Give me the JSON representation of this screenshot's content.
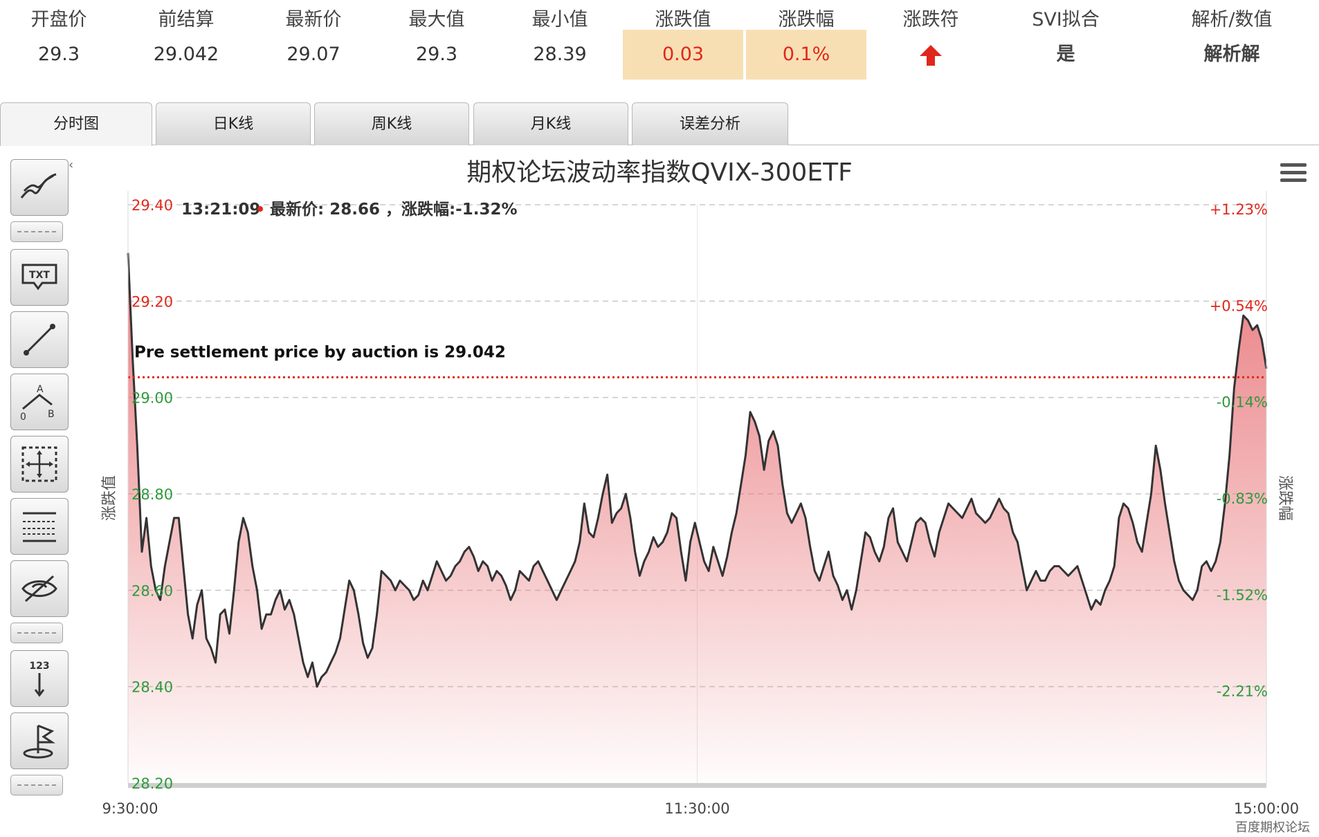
{
  "stats": [
    {
      "label": "开盘价",
      "value": "29.3"
    },
    {
      "label": "前结算",
      "value": "29.042"
    },
    {
      "label": "最新价",
      "value": "29.07"
    },
    {
      "label": "最大值",
      "value": "29.3"
    },
    {
      "label": "最小值",
      "value": "28.39"
    },
    {
      "label": "涨跌值",
      "value": "0.03"
    },
    {
      "label": "涨跌幅",
      "value": "0.1%"
    },
    {
      "label": "涨跌符",
      "value": ""
    },
    {
      "label": "SVI拟合",
      "value": "是"
    },
    {
      "label": "解析/数值",
      "value": "解析解"
    }
  ],
  "colors": {
    "up": "#e0271c",
    "down": "#2e9a3a",
    "highlight": "#f8dfb3",
    "line": "#333333",
    "fill": "#e8767a"
  },
  "tabs": [
    "分时图",
    "日K线",
    "周K线",
    "月K线",
    "误差分析"
  ],
  "toolbar_icons": [
    "trend-lines-icon",
    "text-annotation-icon",
    "line-segment-icon",
    "abc-pattern-icon",
    "crosshair-measure-icon",
    "horizontal-lines-icon",
    "hide-eye-icon",
    "number-label-icon",
    "flag-icon"
  ],
  "collapse_glyph": "‹",
  "chart_data": {
    "type": "area",
    "title": "期权论坛波动率指数QVIX-300ETF",
    "ylabel_left": "涨跌值",
    "ylabel_right": "涨跌幅",
    "ylim": [
      28.2,
      29.4
    ],
    "y_ticks": [
      "29.40",
      "29.20",
      "29.00",
      "28.80",
      "28.60",
      "28.40",
      "28.20"
    ],
    "y_tick_values": [
      29.4,
      29.2,
      29.0,
      28.8,
      28.6,
      28.4,
      28.2
    ],
    "pct_ticks": [
      "+1.23%",
      "+0.54%",
      "-0.14%",
      "-0.83%",
      "-1.52%",
      "-2.21%"
    ],
    "x_ticks": [
      "9:30:00",
      "11:30:00",
      "15:00:00"
    ],
    "reference_value": 29.042,
    "reference_label": "Pre settlement price by auction is 29.042",
    "tooltip": {
      "time": "13:21:09",
      "text": "最新价: 28.66 ，涨跌幅:-1.32%"
    },
    "values": [
      29.3,
      29.08,
      28.9,
      28.68,
      28.75,
      28.65,
      28.6,
      28.58,
      28.65,
      28.7,
      28.75,
      28.75,
      28.65,
      28.55,
      28.5,
      28.57,
      28.6,
      28.5,
      28.48,
      28.45,
      28.55,
      28.56,
      28.51,
      28.6,
      28.7,
      28.75,
      28.72,
      28.65,
      28.6,
      28.52,
      28.55,
      28.55,
      28.58,
      28.6,
      28.56,
      28.58,
      28.55,
      28.5,
      28.45,
      28.42,
      28.45,
      28.4,
      28.42,
      28.43,
      28.45,
      28.47,
      28.5,
      28.56,
      28.62,
      28.6,
      28.55,
      28.49,
      28.46,
      28.48,
      28.55,
      28.64,
      28.63,
      28.62,
      28.6,
      28.62,
      28.61,
      28.6,
      28.58,
      28.59,
      28.62,
      28.6,
      28.63,
      28.66,
      28.64,
      28.62,
      28.63,
      28.65,
      28.66,
      28.68,
      28.69,
      28.67,
      28.64,
      28.66,
      28.65,
      28.62,
      28.64,
      28.63,
      28.61,
      28.58,
      28.6,
      28.64,
      28.63,
      28.62,
      28.65,
      28.66,
      28.64,
      28.62,
      28.6,
      28.58,
      28.6,
      28.62,
      28.64,
      28.66,
      28.7,
      28.78,
      28.72,
      28.71,
      28.75,
      28.8,
      28.84,
      28.74,
      28.76,
      28.77,
      28.8,
      28.75,
      28.68,
      28.63,
      28.66,
      28.68,
      28.71,
      28.69,
      28.7,
      28.72,
      28.76,
      28.75,
      28.68,
      28.62,
      28.7,
      28.74,
      28.7,
      28.66,
      28.64,
      28.69,
      28.66,
      28.63,
      28.67,
      28.72,
      28.76,
      28.82,
      28.88,
      28.97,
      28.95,
      28.92,
      28.85,
      28.91,
      28.93,
      28.9,
      28.82,
      28.76,
      28.74,
      28.76,
      28.78,
      28.75,
      28.69,
      28.64,
      28.62,
      28.65,
      28.68,
      28.63,
      28.61,
      28.58,
      28.6,
      28.56,
      28.6,
      28.66,
      28.72,
      28.71,
      28.68,
      28.66,
      28.69,
      28.75,
      28.77,
      28.7,
      28.68,
      28.66,
      28.7,
      28.74,
      28.75,
      28.74,
      28.7,
      28.67,
      28.72,
      28.75,
      28.78,
      28.77,
      28.76,
      28.75,
      28.77,
      28.79,
      28.76,
      28.75,
      28.74,
      28.75,
      28.77,
      28.79,
      28.77,
      28.76,
      28.72,
      28.7,
      28.65,
      28.6,
      28.62,
      28.64,
      28.62,
      28.62,
      28.64,
      28.65,
      28.65,
      28.64,
      28.63,
      28.64,
      28.65,
      28.62,
      28.59,
      28.56,
      28.58,
      28.57,
      28.6,
      28.62,
      28.65,
      28.75,
      28.78,
      28.77,
      28.74,
      28.7,
      28.68,
      28.74,
      28.8,
      28.9,
      28.85,
      28.78,
      28.72,
      28.66,
      28.62,
      28.6,
      28.59,
      28.58,
      28.6,
      28.65,
      28.66,
      28.64,
      28.66,
      28.7,
      28.78,
      28.88,
      29.02,
      29.1,
      29.17,
      29.16,
      29.14,
      29.15,
      29.12,
      29.06
    ]
  }
}
